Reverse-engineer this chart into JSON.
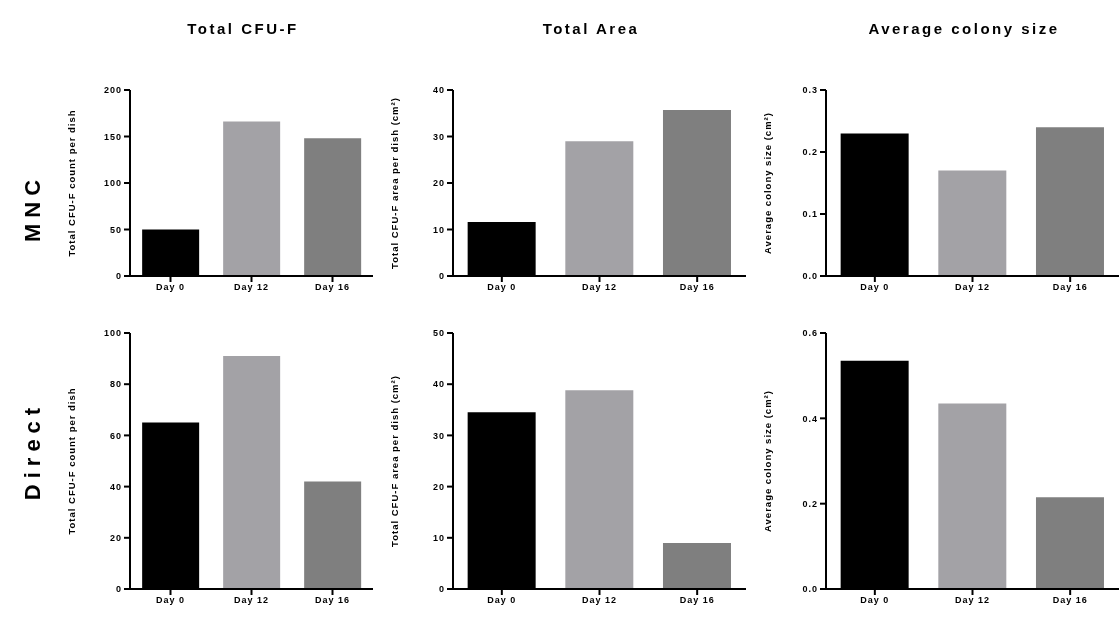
{
  "chart_data": [
    {
      "type": "bar",
      "title": "Total CFU-F",
      "annotations": [
        "MNC"
      ],
      "ylabel": "Total CFU-F count per dish",
      "categories": [
        "Day 0",
        "Day 12",
        "Day 16"
      ],
      "values": [
        50,
        166,
        148
      ],
      "colors": [
        "#000000",
        "#a3a2a6",
        "#7f7f7f"
      ],
      "ylim": [
        0,
        200
      ],
      "yticks": [
        0,
        50,
        100,
        150,
        200
      ],
      "grid": false,
      "legend": false
    },
    {
      "type": "bar",
      "title": "Total Area",
      "ylabel": "Total CFU-F area per dish (cm²)",
      "categories": [
        "Day 0",
        "Day 12",
        "Day 16"
      ],
      "values": [
        11.6,
        29,
        35.7
      ],
      "colors": [
        "#000000",
        "#a3a2a6",
        "#7f7f7f"
      ],
      "ylim": [
        0,
        40
      ],
      "yticks": [
        0,
        10,
        20,
        30,
        40
      ],
      "grid": false,
      "legend": false
    },
    {
      "type": "bar",
      "title": "Average colony size",
      "ylabel": "Average colony size (cm²)",
      "categories": [
        "Day 0",
        "Day 12",
        "Day 16"
      ],
      "values": [
        0.23,
        0.17,
        0.24
      ],
      "colors": [
        "#000000",
        "#a3a2a6",
        "#7f7f7f"
      ],
      "ylim": [
        0,
        0.3
      ],
      "yticks": [
        {
          "value": 0,
          "label": "0.0"
        },
        0.1,
        0.2,
        0.3
      ],
      "grid": false,
      "legend": false
    },
    {
      "type": "bar",
      "annotations": [
        "Direct"
      ],
      "ylabel": "Total CFU-F count per dish",
      "categories": [
        "Day 0",
        "Day 12",
        "Day 16"
      ],
      "values": [
        65,
        91,
        42
      ],
      "colors": [
        "#000000",
        "#a3a2a6",
        "#7f7f7f"
      ],
      "ylim": [
        0,
        100
      ],
      "yticks": [
        0,
        20,
        40,
        60,
        80,
        100
      ],
      "grid": false,
      "legend": false
    },
    {
      "type": "bar",
      "ylabel": "Total CFU-F area per dish (cm²)",
      "categories": [
        "Day 0",
        "Day 12",
        "Day 16"
      ],
      "values": [
        34.5,
        38.8,
        9
      ],
      "colors": [
        "#000000",
        "#a3a2a6",
        "#7f7f7f"
      ],
      "ylim": [
        0,
        50
      ],
      "yticks": [
        0,
        10,
        20,
        30,
        40,
        50
      ],
      "grid": false,
      "legend": false
    },
    {
      "type": "bar",
      "ylabel": "Average colony size (cm²)",
      "categories": [
        "Day 0",
        "Day 12",
        "Day 16"
      ],
      "values": [
        0.535,
        0.435,
        0.215
      ],
      "colors": [
        "#000000",
        "#a3a2a6",
        "#7f7f7f"
      ],
      "ylim": [
        0,
        0.6
      ],
      "yticks": [
        {
          "value": 0,
          "label": "0.0"
        },
        0.2,
        0.4,
        0.6
      ],
      "grid": false,
      "legend": false
    }
  ]
}
